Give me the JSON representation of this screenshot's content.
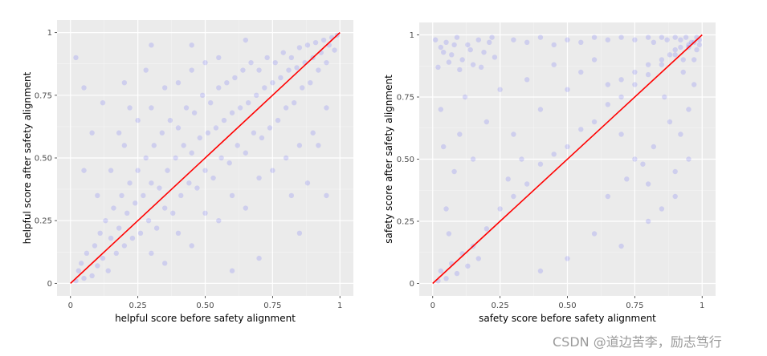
{
  "chart_data": [
    {
      "type": "scatter",
      "xlabel": "helpful score before safety alignment",
      "ylabel": "helpful score after safety alignment",
      "xlim": [
        -0.05,
        1.05
      ],
      "ylim": [
        -0.05,
        1.05
      ],
      "xticks": [
        0,
        0.25,
        0.5,
        0.75,
        1
      ],
      "yticks": [
        0,
        0.25,
        0.5,
        0.75,
        1
      ],
      "xtick_labels": [
        "0",
        "0.25",
        "0.50",
        "0.75",
        "1"
      ],
      "ytick_labels": [
        "0",
        "0.25",
        "0.50",
        "0.75",
        "1"
      ],
      "grid": true,
      "point_color": "#0000ff",
      "line_color": "#ff0000",
      "reference_line": {
        "x": [
          0,
          1
        ],
        "y": [
          0,
          1
        ]
      },
      "series": [
        {
          "points": [
            [
              0.02,
              0.01
            ],
            [
              0.03,
              0.05
            ],
            [
              0.05,
              0.02
            ],
            [
              0.04,
              0.08
            ],
            [
              0.06,
              0.12
            ],
            [
              0.08,
              0.03
            ],
            [
              0.09,
              0.15
            ],
            [
              0.1,
              0.07
            ],
            [
              0.11,
              0.2
            ],
            [
              0.12,
              0.1
            ],
            [
              0.13,
              0.25
            ],
            [
              0.14,
              0.05
            ],
            [
              0.15,
              0.18
            ],
            [
              0.16,
              0.3
            ],
            [
              0.17,
              0.12
            ],
            [
              0.18,
              0.22
            ],
            [
              0.19,
              0.35
            ],
            [
              0.2,
              0.15
            ],
            [
              0.21,
              0.28
            ],
            [
              0.22,
              0.4
            ],
            [
              0.23,
              0.18
            ],
            [
              0.24,
              0.32
            ],
            [
              0.25,
              0.45
            ],
            [
              0.26,
              0.2
            ],
            [
              0.27,
              0.35
            ],
            [
              0.28,
              0.5
            ],
            [
              0.29,
              0.25
            ],
            [
              0.3,
              0.4
            ],
            [
              0.31,
              0.55
            ],
            [
              0.32,
              0.22
            ],
            [
              0.33,
              0.38
            ],
            [
              0.34,
              0.6
            ],
            [
              0.35,
              0.3
            ],
            [
              0.36,
              0.45
            ],
            [
              0.37,
              0.65
            ],
            [
              0.38,
              0.28
            ],
            [
              0.39,
              0.5
            ],
            [
              0.4,
              0.62
            ],
            [
              0.41,
              0.35
            ],
            [
              0.42,
              0.55
            ],
            [
              0.43,
              0.7
            ],
            [
              0.44,
              0.4
            ],
            [
              0.45,
              0.52
            ],
            [
              0.46,
              0.68
            ],
            [
              0.47,
              0.38
            ],
            [
              0.48,
              0.58
            ],
            [
              0.49,
              0.75
            ],
            [
              0.5,
              0.45
            ],
            [
              0.51,
              0.6
            ],
            [
              0.52,
              0.72
            ],
            [
              0.53,
              0.42
            ],
            [
              0.54,
              0.62
            ],
            [
              0.55,
              0.78
            ],
            [
              0.56,
              0.5
            ],
            [
              0.57,
              0.65
            ],
            [
              0.58,
              0.8
            ],
            [
              0.59,
              0.48
            ],
            [
              0.6,
              0.68
            ],
            [
              0.61,
              0.82
            ],
            [
              0.62,
              0.55
            ],
            [
              0.63,
              0.7
            ],
            [
              0.64,
              0.85
            ],
            [
              0.65,
              0.52
            ],
            [
              0.66,
              0.72
            ],
            [
              0.67,
              0.88
            ],
            [
              0.68,
              0.6
            ],
            [
              0.69,
              0.75
            ],
            [
              0.7,
              0.85
            ],
            [
              0.71,
              0.58
            ],
            [
              0.72,
              0.78
            ],
            [
              0.73,
              0.9
            ],
            [
              0.74,
              0.62
            ],
            [
              0.75,
              0.8
            ],
            [
              0.76,
              0.88
            ],
            [
              0.77,
              0.65
            ],
            [
              0.78,
              0.82
            ],
            [
              0.79,
              0.92
            ],
            [
              0.8,
              0.7
            ],
            [
              0.81,
              0.85
            ],
            [
              0.82,
              0.9
            ],
            [
              0.83,
              0.72
            ],
            [
              0.84,
              0.86
            ],
            [
              0.85,
              0.94
            ],
            [
              0.86,
              0.78
            ],
            [
              0.87,
              0.88
            ],
            [
              0.88,
              0.95
            ],
            [
              0.89,
              0.8
            ],
            [
              0.9,
              0.9
            ],
            [
              0.91,
              0.96
            ],
            [
              0.92,
              0.85
            ],
            [
              0.93,
              0.92
            ],
            [
              0.94,
              0.97
            ],
            [
              0.95,
              0.88
            ],
            [
              0.96,
              0.95
            ],
            [
              0.97,
              0.98
            ],
            [
              0.98,
              0.93
            ],
            [
              0.99,
              0.99
            ],
            [
              0.1,
              0.35
            ],
            [
              0.15,
              0.45
            ],
            [
              0.2,
              0.55
            ],
            [
              0.25,
              0.65
            ],
            [
              0.3,
              0.7
            ],
            [
              0.35,
              0.78
            ],
            [
              0.4,
              0.8
            ],
            [
              0.45,
              0.85
            ],
            [
              0.5,
              0.88
            ],
            [
              0.55,
              0.9
            ],
            [
              0.3,
              0.12
            ],
            [
              0.4,
              0.2
            ],
            [
              0.5,
              0.28
            ],
            [
              0.6,
              0.35
            ],
            [
              0.7,
              0.42
            ],
            [
              0.8,
              0.5
            ],
            [
              0.9,
              0.6
            ],
            [
              0.85,
              0.55
            ],
            [
              0.75,
              0.45
            ],
            [
              0.65,
              0.3
            ],
            [
              0.55,
              0.25
            ],
            [
              0.45,
              0.15
            ],
            [
              0.35,
              0.08
            ],
            [
              0.05,
              0.45
            ],
            [
              0.08,
              0.6
            ],
            [
              0.12,
              0.72
            ],
            [
              0.2,
              0.8
            ],
            [
              0.28,
              0.85
            ],
            [
              0.95,
              0.7
            ],
            [
              0.92,
              0.55
            ],
            [
              0.88,
              0.4
            ],
            [
              0.82,
              0.35
            ],
            [
              0.6,
              0.05
            ],
            [
              0.02,
              0.9
            ],
            [
              0.05,
              0.78
            ],
            [
              0.3,
              0.95
            ],
            [
              0.45,
              0.95
            ],
            [
              0.65,
              0.97
            ],
            [
              0.7,
              0.1
            ],
            [
              0.85,
              0.2
            ],
            [
              0.95,
              0.35
            ],
            [
              0.18,
              0.6
            ],
            [
              0.22,
              0.7
            ]
          ]
        }
      ]
    },
    {
      "type": "scatter",
      "xlabel": "safety score before safety alignment",
      "ylabel": "safety score after safety alignment",
      "xlim": [
        -0.05,
        1.05
      ],
      "ylim": [
        -0.05,
        1.05
      ],
      "xticks": [
        0,
        0.25,
        0.5,
        0.75,
        1
      ],
      "yticks": [
        0,
        0.25,
        0.5,
        0.75,
        1
      ],
      "xtick_labels": [
        "0",
        "0.25",
        "0.50",
        "0.75",
        "1"
      ],
      "ytick_labels": [
        "0",
        "0.25",
        "0.50",
        "0.75",
        "1"
      ],
      "grid": true,
      "point_color": "#0000ff",
      "line_color": "#ff0000",
      "reference_line": {
        "x": [
          0,
          1
        ],
        "y": [
          0,
          1
        ]
      },
      "series": [
        {
          "points": [
            [
              0.01,
              0.98
            ],
            [
              0.03,
              0.95
            ],
            [
              0.05,
              0.97
            ],
            [
              0.07,
              0.92
            ],
            [
              0.09,
              0.99
            ],
            [
              0.11,
              0.9
            ],
            [
              0.13,
              0.96
            ],
            [
              0.15,
              0.88
            ],
            [
              0.17,
              0.98
            ],
            [
              0.19,
              0.93
            ],
            [
              0.21,
              0.97
            ],
            [
              0.23,
              0.91
            ],
            [
              0.02,
              0.87
            ],
            [
              0.06,
              0.89
            ],
            [
              0.1,
              0.86
            ],
            [
              0.14,
              0.94
            ],
            [
              0.18,
              0.87
            ],
            [
              0.22,
              0.99
            ],
            [
              0.04,
              0.93
            ],
            [
              0.08,
              0.96
            ],
            [
              0.3,
              0.98
            ],
            [
              0.35,
              0.97
            ],
            [
              0.4,
              0.99
            ],
            [
              0.45,
              0.96
            ],
            [
              0.5,
              0.98
            ],
            [
              0.55,
              0.97
            ],
            [
              0.6,
              0.99
            ],
            [
              0.65,
              0.98
            ],
            [
              0.7,
              0.99
            ],
            [
              0.75,
              0.98
            ],
            [
              0.8,
              0.99
            ],
            [
              0.82,
              0.97
            ],
            [
              0.85,
              0.99
            ],
            [
              0.87,
              0.98
            ],
            [
              0.9,
              0.99
            ],
            [
              0.92,
              0.98
            ],
            [
              0.94,
              0.99
            ],
            [
              0.96,
              0.97
            ],
            [
              0.98,
              0.99
            ],
            [
              0.99,
              0.98
            ],
            [
              0.88,
              0.92
            ],
            [
              0.9,
              0.94
            ],
            [
              0.92,
              0.95
            ],
            [
              0.95,
              0.96
            ],
            [
              0.97,
              0.97
            ],
            [
              0.85,
              0.9
            ],
            [
              0.8,
              0.88
            ],
            [
              0.75,
              0.85
            ],
            [
              0.7,
              0.82
            ],
            [
              0.93,
              0.9
            ],
            [
              0.02,
              0.01
            ],
            [
              0.03,
              0.05
            ],
            [
              0.05,
              0.02
            ],
            [
              0.07,
              0.08
            ],
            [
              0.09,
              0.04
            ],
            [
              0.11,
              0.12
            ],
            [
              0.13,
              0.07
            ],
            [
              0.15,
              0.15
            ],
            [
              0.17,
              0.1
            ],
            [
              0.2,
              0.22
            ],
            [
              0.25,
              0.3
            ],
            [
              0.3,
              0.35
            ],
            [
              0.35,
              0.4
            ],
            [
              0.4,
              0.48
            ],
            [
              0.45,
              0.52
            ],
            [
              0.5,
              0.55
            ],
            [
              0.55,
              0.62
            ],
            [
              0.6,
              0.65
            ],
            [
              0.65,
              0.72
            ],
            [
              0.7,
              0.75
            ],
            [
              0.75,
              0.8
            ],
            [
              0.8,
              0.84
            ],
            [
              0.85,
              0.88
            ],
            [
              0.9,
              0.92
            ],
            [
              0.95,
              0.95
            ],
            [
              0.05,
              0.3
            ],
            [
              0.08,
              0.45
            ],
            [
              0.1,
              0.6
            ],
            [
              0.12,
              0.75
            ],
            [
              0.15,
              0.5
            ],
            [
              0.2,
              0.65
            ],
            [
              0.25,
              0.78
            ],
            [
              0.3,
              0.6
            ],
            [
              0.35,
              0.82
            ],
            [
              0.4,
              0.7
            ],
            [
              0.45,
              0.88
            ],
            [
              0.5,
              0.78
            ],
            [
              0.55,
              0.85
            ],
            [
              0.6,
              0.9
            ],
            [
              0.65,
              0.8
            ],
            [
              0.7,
              0.6
            ],
            [
              0.75,
              0.5
            ],
            [
              0.8,
              0.4
            ],
            [
              0.85,
              0.3
            ],
            [
              0.9,
              0.45
            ],
            [
              0.92,
              0.6
            ],
            [
              0.95,
              0.7
            ],
            [
              0.97,
              0.8
            ],
            [
              0.88,
              0.65
            ],
            [
              0.82,
              0.55
            ],
            [
              0.6,
              0.2
            ],
            [
              0.7,
              0.15
            ],
            [
              0.8,
              0.25
            ],
            [
              0.9,
              0.35
            ],
            [
              0.95,
              0.5
            ],
            [
              0.5,
              0.1
            ],
            [
              0.4,
              0.05
            ],
            [
              0.65,
              0.35
            ],
            [
              0.72,
              0.42
            ],
            [
              0.78,
              0.48
            ],
            [
              0.86,
              0.75
            ],
            [
              0.93,
              0.85
            ],
            [
              0.97,
              0.9
            ],
            [
              0.98,
              0.94
            ],
            [
              0.99,
              0.96
            ],
            [
              0.03,
              0.7
            ],
            [
              0.04,
              0.55
            ],
            [
              0.06,
              0.2
            ],
            [
              0.28,
              0.42
            ],
            [
              0.33,
              0.5
            ]
          ]
        }
      ]
    }
  ],
  "watermark": "CSDN @道边苦李，励志笃行"
}
